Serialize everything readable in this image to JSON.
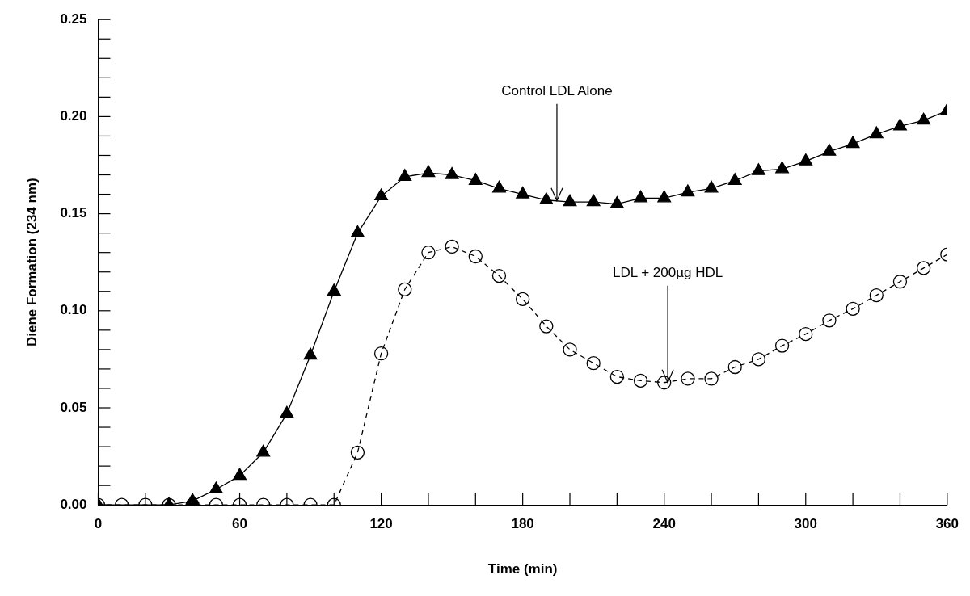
{
  "chart_data": {
    "type": "line",
    "xlabel": "Time (min)",
    "ylabel": "Diene Formation (234 nm)",
    "xlim": [
      0,
      360
    ],
    "ylim": [
      0,
      0.25
    ],
    "xticks": [
      0,
      {
        "value": 20,
        "label": null
      },
      {
        "value": 40,
        "label": null
      },
      60,
      {
        "value": 80,
        "label": null
      },
      {
        "value": 100,
        "label": null
      },
      120,
      {
        "value": 140,
        "label": null
      },
      {
        "value": 160,
        "label": null
      },
      180,
      {
        "value": 200,
        "label": null
      },
      {
        "value": 220,
        "label": null
      },
      240,
      {
        "value": 260,
        "label": null
      },
      {
        "value": 280,
        "label": null
      },
      300,
      {
        "value": 320,
        "label": null
      },
      {
        "value": 340,
        "label": null
      },
      360
    ],
    "yticks": [
      {
        "value": 0,
        "label": "0.00"
      },
      {
        "value": 0.01,
        "label": null
      },
      {
        "value": 0.02,
        "label": null
      },
      {
        "value": 0.03,
        "label": null
      },
      {
        "value": 0.04,
        "label": null
      },
      {
        "value": 0.05,
        "label": "0.05"
      },
      {
        "value": 0.06,
        "label": null
      },
      {
        "value": 0.07,
        "label": null
      },
      {
        "value": 0.08,
        "label": null
      },
      {
        "value": 0.09,
        "label": null
      },
      {
        "value": 0.1,
        "label": "0.10"
      },
      {
        "value": 0.11,
        "label": null
      },
      {
        "value": 0.12,
        "label": null
      },
      {
        "value": 0.13,
        "label": null
      },
      {
        "value": 0.14,
        "label": null
      },
      {
        "value": 0.15,
        "label": "0.15"
      },
      {
        "value": 0.16,
        "label": null
      },
      {
        "value": 0.17,
        "label": null
      },
      {
        "value": 0.18,
        "label": null
      },
      {
        "value": 0.19,
        "label": null
      },
      {
        "value": 0.2,
        "label": "0.20"
      },
      {
        "value": 0.21,
        "label": null
      },
      {
        "value": 0.22,
        "label": null
      },
      {
        "value": 0.23,
        "label": null
      },
      {
        "value": 0.24,
        "label": null
      },
      {
        "value": 0.25,
        "label": "0.25"
      }
    ],
    "grid": false,
    "legend": false,
    "series": [
      {
        "color": "#000000",
        "marker": "triangle",
        "line_style": "solid",
        "x": [
          0,
          30,
          40,
          50,
          60,
          70,
          80,
          90,
          100,
          110,
          120,
          130,
          140,
          150,
          160,
          170,
          180,
          190,
          200,
          210,
          220,
          230,
          240,
          250,
          260,
          270,
          280,
          290,
          300,
          310,
          320,
          330,
          340,
          350,
          360
        ],
        "values": [
          0,
          0,
          0.002,
          0.008,
          0.015,
          0.027,
          0.047,
          0.077,
          0.11,
          0.14,
          0.159,
          0.169,
          0.171,
          0.17,
          0.167,
          0.163,
          0.16,
          0.157,
          0.156,
          0.156,
          0.155,
          0.158,
          0.158,
          0.161,
          0.163,
          0.167,
          0.172,
          0.173,
          0.177,
          0.182,
          0.186,
          0.191,
          0.195,
          0.198,
          0.203
        ]
      },
      {
        "color": "#000000",
        "marker": "circle",
        "line_style": "dashed",
        "x": [
          0,
          10,
          20,
          30,
          40,
          50,
          60,
          70,
          80,
          90,
          100,
          110,
          120,
          130,
          140,
          150,
          160,
          170,
          180,
          190,
          200,
          210,
          220,
          230,
          240,
          250,
          260,
          270,
          280,
          290,
          300,
          310,
          320,
          330,
          340,
          350,
          360
        ],
        "values": [
          0,
          0,
          0,
          0,
          0,
          0,
          0,
          0,
          0,
          0,
          0,
          0.027,
          0.078,
          0.111,
          0.13,
          0.133,
          0.128,
          0.118,
          0.106,
          0.092,
          0.08,
          0.073,
          0.066,
          0.064,
          0.063,
          0.065,
          0.065,
          0.071,
          0.075,
          0.082,
          0.088,
          0.095,
          0.101,
          0.108,
          0.115,
          0.122,
          0.129
        ]
      }
    ],
    "annotations": [
      {
        "text": "Control LDL Alone",
        "x": 194.5,
        "y": 0.1566
      },
      {
        "text": "LDL + 200µg HDL",
        "x": 241.5,
        "y": 0.063
      }
    ]
  }
}
